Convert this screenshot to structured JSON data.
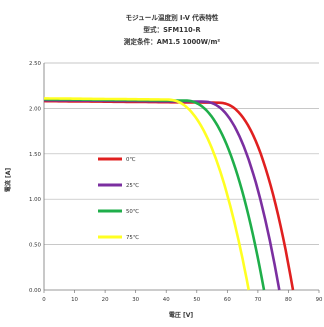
{
  "chart_data": {
    "type": "line",
    "title": "モジュール温度別 I-V 代表特性",
    "subtitle_model": "型式：SFM110-R",
    "subtitle_condition": "測定条件：AM1.5 1000W/m²",
    "xlabel": "電圧 [V]",
    "ylabel": "電流 [A]",
    "xlim": [
      0,
      90
    ],
    "ylim": [
      0,
      2.5
    ],
    "x_ticks": [
      "0",
      "10",
      "20",
      "30",
      "40",
      "50",
      "60",
      "70",
      "80",
      "90"
    ],
    "y_ticks": [
      "0.00",
      "0.50",
      "1.00",
      "1.50",
      "2.00",
      "2.50"
    ],
    "grid": "horizontal",
    "legend_position": "center-left",
    "series": [
      {
        "name": "0℃",
        "color": "#e02020",
        "isc": 2.08,
        "voc": 81.5,
        "knee": 57
      },
      {
        "name": "25℃",
        "color": "#7b2fa0",
        "isc": 2.09,
        "voc": 77,
        "knee": 52
      },
      {
        "name": "50℃",
        "color": "#1fae4a",
        "isc": 2.1,
        "voc": 72,
        "knee": 46
      },
      {
        "name": "75℃",
        "color": "#ffff22",
        "isc": 2.11,
        "voc": 67,
        "knee": 40
      }
    ]
  }
}
